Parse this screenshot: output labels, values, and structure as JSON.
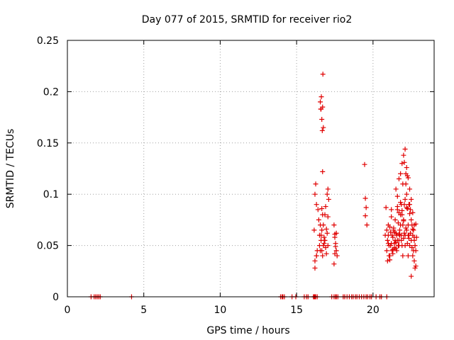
{
  "chart_data": {
    "type": "scatter",
    "title": "Day 077 of 2015, SRMTID for receiver rio2",
    "xlabel": "GPS time / hours",
    "ylabel": "SRMTID / TECUs",
    "xlim": [
      0,
      24
    ],
    "ylim": [
      0,
      0.25
    ],
    "xticks": [
      0,
      5,
      10,
      15,
      20
    ],
    "yticks": [
      0,
      0.05,
      0.1,
      0.15,
      0.2,
      0.25
    ],
    "ytick_labels": [
      "0",
      "0.05",
      "0.1",
      "0.15",
      "0.2",
      "0.25"
    ],
    "grid": true,
    "marker": "+",
    "color": "#e00000",
    "series": [
      {
        "x": [
          1.55,
          1.75,
          1.85,
          1.95,
          2.05,
          2.15,
          4.2,
          13.95,
          14.05,
          14.1,
          14.2,
          14.7,
          14.95,
          15.5,
          15.65,
          15.75,
          16.1,
          16.15,
          16.2,
          16.25,
          16.35,
          17.3,
          17.45,
          17.55,
          17.6,
          17.7,
          18.05,
          18.15,
          18.3,
          18.45,
          18.6,
          18.7,
          18.85,
          18.95,
          19.1,
          19.25,
          19.4,
          19.55,
          19.65,
          19.8,
          19.9,
          20.2,
          20.45,
          20.55,
          20.9,
          16.15,
          16.2,
          16.25,
          16.3,
          16.4,
          16.45,
          16.5,
          16.55,
          16.6,
          16.65,
          16.7,
          16.75,
          16.8,
          16.9,
          17.0,
          17.05,
          17.1,
          16.2,
          16.3,
          16.35,
          16.5,
          16.55,
          16.6,
          16.65,
          16.7,
          16.75,
          16.8,
          16.85,
          16.9,
          16.95,
          17.0,
          17.05,
          16.55,
          16.58,
          16.62,
          16.65,
          16.68,
          16.7,
          16.72,
          16.75,
          16.6,
          16.7,
          16.65,
          16.95,
          16.85,
          17.05,
          16.2,
          16.3,
          17.45,
          17.5,
          17.55,
          17.6,
          17.65,
          17.5,
          17.55,
          17.45,
          17.6,
          17.5,
          19.45,
          19.5,
          19.55,
          19.6,
          19.5,
          20.8,
          20.85,
          20.9,
          20.95,
          21.0,
          21.05,
          21.1,
          21.15,
          21.2,
          21.25,
          21.3,
          21.35,
          21.4,
          21.45,
          21.5,
          21.55,
          21.6,
          21.65,
          21.7,
          21.75,
          21.8,
          21.85,
          21.9,
          21.95,
          22.0,
          22.05,
          22.1,
          22.15,
          22.2,
          22.25,
          22.3,
          22.35,
          22.4,
          22.45,
          22.5,
          22.55,
          22.6,
          22.65,
          22.7,
          22.75,
          22.8,
          22.85,
          20.9,
          21.0,
          21.1,
          21.2,
          21.3,
          21.4,
          21.5,
          21.6,
          21.7,
          21.8,
          21.9,
          22.0,
          22.1,
          22.2,
          22.3,
          22.4,
          22.5,
          22.6,
          22.7,
          22.8,
          20.95,
          21.05,
          21.15,
          21.25,
          21.35,
          21.45,
          21.55,
          21.65,
          21.75,
          21.85,
          21.95,
          22.05,
          22.15,
          22.25,
          22.35,
          22.45,
          22.55,
          22.65,
          22.75,
          21.5,
          21.6,
          21.7,
          21.8,
          21.9,
          22.0,
          22.1,
          22.2,
          22.3,
          22.4,
          21.7,
          22.05,
          22.15,
          22.25,
          21.85,
          21.95,
          22.35,
          22.6,
          22.5,
          22.7,
          21.0,
          21.2,
          21.4,
          21.6,
          21.8,
          22.0,
          22.2,
          22.4,
          22.6,
          22.8,
          21.1,
          21.3,
          21.5,
          21.7,
          21.9,
          22.1,
          22.3,
          22.5,
          22.7
        ],
        "y": [
          0,
          0,
          0,
          0,
          0,
          0,
          0,
          0,
          0,
          0,
          0,
          0,
          0,
          0,
          0,
          0,
          0,
          0,
          0,
          0,
          0,
          0,
          0,
          0,
          0,
          0,
          0,
          0,
          0,
          0,
          0,
          0,
          0,
          0,
          0,
          0,
          0,
          0,
          0,
          0,
          0,
          0,
          0,
          0,
          0,
          0.065,
          0.1,
          0.11,
          0.09,
          0.085,
          0.075,
          0.06,
          0.07,
          0.055,
          0.065,
          0.08,
          0.07,
          0.058,
          0.088,
          0.1,
          0.105,
          0.095,
          0.035,
          0.04,
          0.045,
          0.05,
          0.045,
          0.06,
          0.045,
          0.04,
          0.05,
          0.052,
          0.055,
          0.048,
          0.042,
          0.062,
          0.05,
          0.19,
          0.183,
          0.195,
          0.173,
          0.162,
          0.185,
          0.217,
          0.165,
          0.183,
          0.122,
          0.086,
          0.066,
          0.08,
          0.078,
          0.028,
          0.04,
          0.07,
          0.061,
          0.052,
          0.045,
          0.04,
          0.058,
          0.049,
          0.032,
          0.062,
          0.042,
          0.129,
          0.096,
          0.087,
          0.07,
          0.079,
          0.06,
          0.087,
          0.065,
          0.055,
          0.07,
          0.05,
          0.04,
          0.063,
          0.085,
          0.045,
          0.058,
          0.067,
          0.052,
          0.075,
          0.047,
          0.06,
          0.088,
          0.072,
          0.055,
          0.065,
          0.08,
          0.06,
          0.05,
          0.07,
          0.075,
          0.09,
          0.095,
          0.11,
          0.1,
          0.086,
          0.07,
          0.06,
          0.09,
          0.085,
          0.075,
          0.07,
          0.06,
          0.065,
          0.055,
          0.05,
          0.045,
          0.058,
          0.045,
          0.06,
          0.068,
          0.052,
          0.042,
          0.048,
          0.062,
          0.055,
          0.05,
          0.07,
          0.08,
          0.057,
          0.06,
          0.065,
          0.06,
          0.05,
          0.055,
          0.04,
          0.035,
          0.03,
          0.035,
          0.04,
          0.05,
          0.06,
          0.065,
          0.055,
          0.045,
          0.05,
          0.06,
          0.055,
          0.04,
          0.062,
          0.067,
          0.052,
          0.057,
          0.062,
          0.048,
          0.045,
          0.028,
          0.105,
          0.098,
          0.115,
          0.12,
          0.13,
          0.138,
          0.144,
          0.126,
          0.116,
          0.105,
          0.082,
          0.131,
          0.12,
          0.118,
          0.09,
          0.11,
          0.09,
          0.082,
          0.095,
          0.07,
          0.052,
          0.078,
          0.063,
          0.085,
          0.092,
          0.074,
          0.087,
          0.081,
          0.066,
          0.071,
          0.036,
          0.046,
          0.053,
          0.061,
          0.084,
          0.05,
          0.04,
          0.02,
          0.058
        ]
      }
    ]
  }
}
